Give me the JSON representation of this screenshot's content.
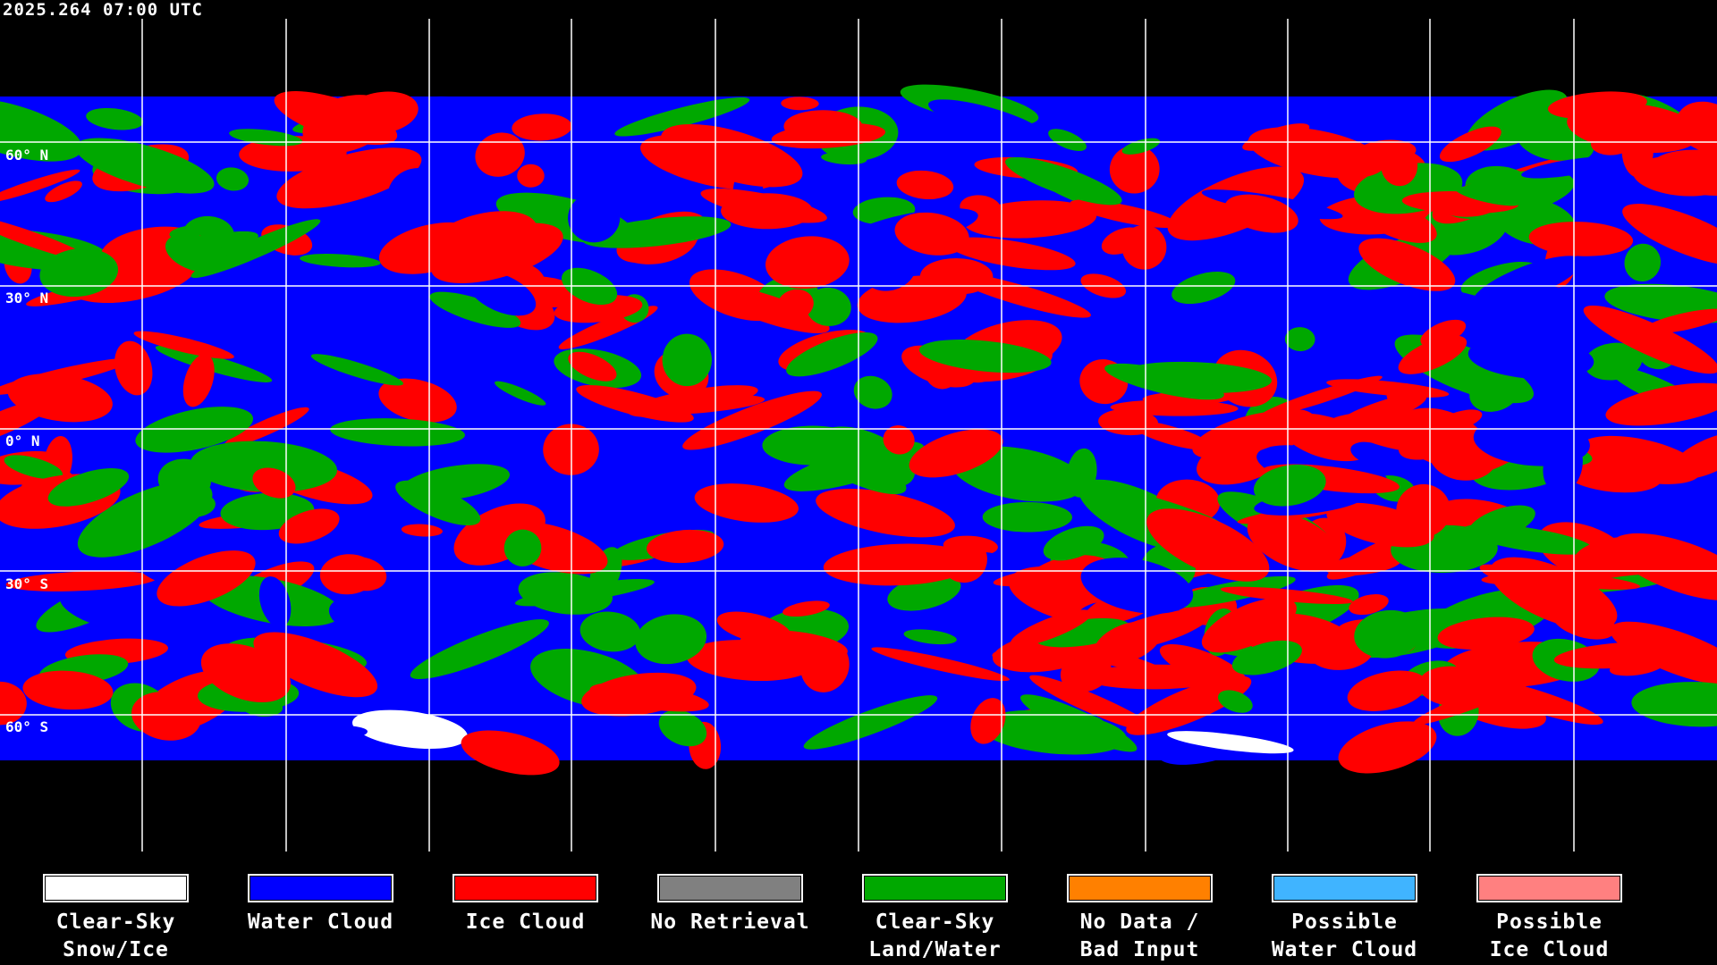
{
  "title": "2025.264 07:00 UTC",
  "latitude_labels": [
    "60° N",
    "30° N",
    "0° N",
    "30° S",
    "60° S"
  ],
  "legend": [
    {
      "line1": "Clear-Sky",
      "line2": "Snow/Ice",
      "color": "#ffffff"
    },
    {
      "line1": "Water Cloud",
      "line2": "",
      "color": "#0000ff"
    },
    {
      "line1": "Ice Cloud",
      "line2": "",
      "color": "#ff0000"
    },
    {
      "line1": "No Retrieval",
      "line2": "",
      "color": "#808080"
    },
    {
      "line1": "Clear-Sky",
      "line2": "Land/Water",
      "color": "#00a800"
    },
    {
      "line1": "No Data /",
      "line2": "Bad Input",
      "color": "#ff8000"
    },
    {
      "line1": "Possible",
      "line2": "Water Cloud",
      "color": "#40b4ff"
    },
    {
      "line1": "Possible",
      "line2": "Ice Cloud",
      "color": "#ff8080"
    }
  ],
  "map": {
    "background": "#000000",
    "gridline_color": "#ffffff",
    "coastline_color": "#ffffff"
  }
}
